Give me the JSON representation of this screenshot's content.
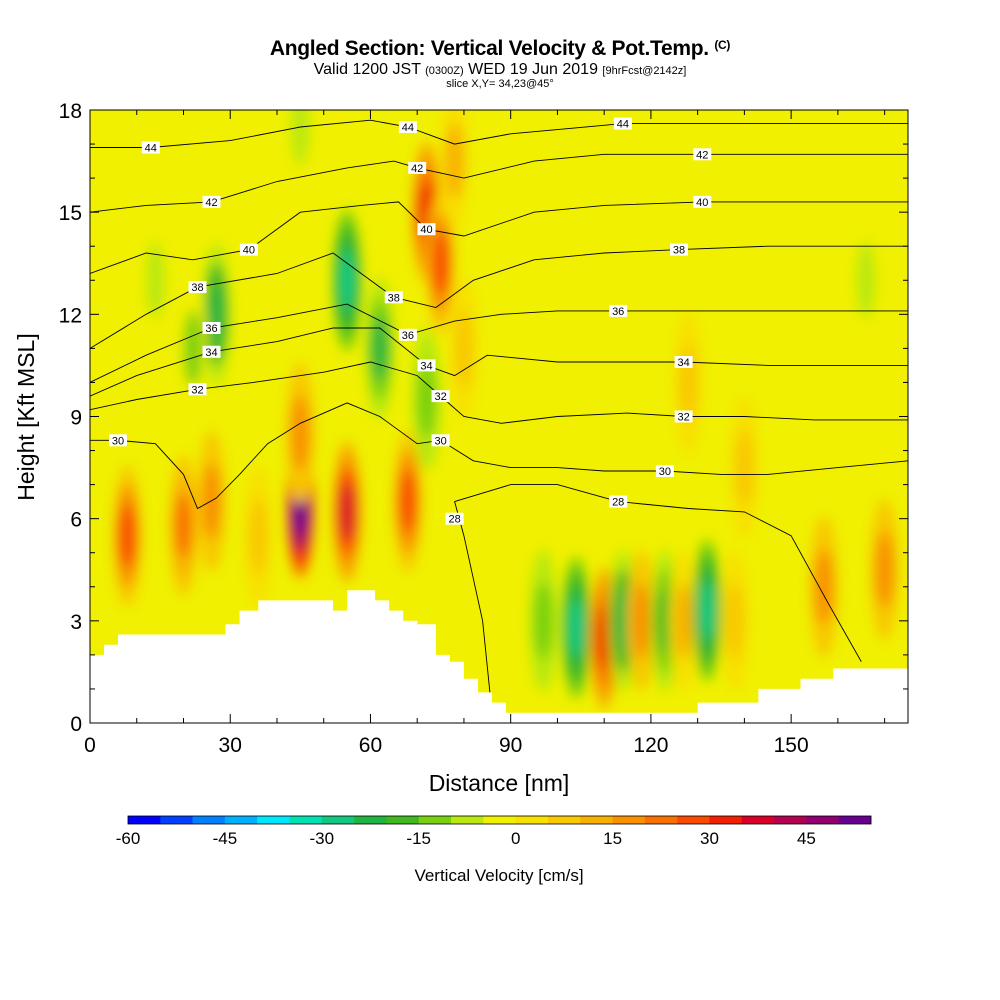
{
  "header": {
    "title_main": "Angled Section: Vertical Velocity & Pot.Temp.",
    "title_copyright": "(C)",
    "valid_prefix": "Valid 1200 JST",
    "valid_utc": "(0300Z)",
    "valid_date": "WED 19 Jun 2019",
    "valid_fcst": "[9hrFcst@2142z]",
    "slice": "slice X,Y= 34,23@45°"
  },
  "chart_data": {
    "type": "heatmap",
    "xlabel": "Distance [nm]",
    "ylabel": "Height [Kft MSL]",
    "xlim": [
      0,
      175
    ],
    "ylim": [
      0,
      18
    ],
    "x_ticks": [
      0,
      30,
      60,
      90,
      120,
      150
    ],
    "y_ticks": [
      0,
      3,
      6,
      9,
      12,
      15,
      18
    ],
    "colorbar": {
      "label": "Vertical Velocity [cm/s]",
      "range": [
        -60,
        55
      ],
      "step": 5,
      "tick_values": [
        -60,
        -45,
        -30,
        -15,
        0,
        15,
        30,
        45
      ],
      "colors": [
        "#0000ff",
        "#0040ff",
        "#0080ff",
        "#00b0ff",
        "#00e6ff",
        "#00e0b0",
        "#10c880",
        "#20b440",
        "#40b820",
        "#78d010",
        "#b8e810",
        "#f0f000",
        "#f8e000",
        "#f8c800",
        "#f8b000",
        "#f89000",
        "#f87000",
        "#f84a00",
        "#f02000",
        "#d80028",
        "#b40050",
        "#900070",
        "#6a0090"
      ]
    },
    "velocity_features": [
      {
        "x": 8,
        "y": 5.5,
        "value": 28
      },
      {
        "x": 20,
        "y": 5.8,
        "value": 20
      },
      {
        "x": 26,
        "y": 6.5,
        "value": 15
      },
      {
        "x": 36,
        "y": 5.5,
        "value": 5
      },
      {
        "x": 45,
        "y": 6.3,
        "value": 55
      },
      {
        "x": 55,
        "y": 6.2,
        "value": 35
      },
      {
        "x": 68,
        "y": 6.5,
        "value": 25
      },
      {
        "x": 45,
        "y": 8.5,
        "value": 15
      },
      {
        "x": 27,
        "y": 12,
        "value": -25
      },
      {
        "x": 22,
        "y": 11,
        "value": -12
      },
      {
        "x": 14,
        "y": 13,
        "value": -8
      },
      {
        "x": 55,
        "y": 13,
        "value": -30
      },
      {
        "x": 62,
        "y": 11,
        "value": -22
      },
      {
        "x": 72,
        "y": 9.5,
        "value": -15
      },
      {
        "x": 45,
        "y": 17.5,
        "value": -8
      },
      {
        "x": 72,
        "y": 15,
        "value": 30
      },
      {
        "x": 75,
        "y": 13.5,
        "value": 25
      },
      {
        "x": 78,
        "y": 16.5,
        "value": 10
      },
      {
        "x": 80,
        "y": 11,
        "value": 8
      },
      {
        "x": 97,
        "y": 3,
        "value": -15
      },
      {
        "x": 104,
        "y": 2.8,
        "value": -30
      },
      {
        "x": 110,
        "y": 2.5,
        "value": 30
      },
      {
        "x": 114,
        "y": 3,
        "value": -25
      },
      {
        "x": 118,
        "y": 3,
        "value": 15
      },
      {
        "x": 123,
        "y": 3,
        "value": -20
      },
      {
        "x": 127,
        "y": 3,
        "value": 12
      },
      {
        "x": 132,
        "y": 3.3,
        "value": -30
      },
      {
        "x": 138,
        "y": 3,
        "value": 5
      },
      {
        "x": 157,
        "y": 4,
        "value": 15
      },
      {
        "x": 170,
        "y": 4.5,
        "value": 15
      },
      {
        "x": 166,
        "y": 13,
        "value": -8
      },
      {
        "x": 140,
        "y": 7.5,
        "value": 8
      },
      {
        "x": 128,
        "y": 10,
        "value": 6
      }
    ],
    "terrain": [
      {
        "x": 0,
        "h": 2.0
      },
      {
        "x": 3,
        "h": 2.0
      },
      {
        "x": 3,
        "h": 2.3
      },
      {
        "x": 6,
        "h": 2.3
      },
      {
        "x": 6,
        "h": 2.6
      },
      {
        "x": 29,
        "h": 2.6
      },
      {
        "x": 29,
        "h": 2.9
      },
      {
        "x": 32,
        "h": 2.9
      },
      {
        "x": 32,
        "h": 3.3
      },
      {
        "x": 36,
        "h": 3.3
      },
      {
        "x": 36,
        "h": 3.6
      },
      {
        "x": 52,
        "h": 3.6
      },
      {
        "x": 52,
        "h": 3.3
      },
      {
        "x": 55,
        "h": 3.3
      },
      {
        "x": 55,
        "h": 3.9
      },
      {
        "x": 61,
        "h": 3.9
      },
      {
        "x": 61,
        "h": 3.6
      },
      {
        "x": 64,
        "h": 3.6
      },
      {
        "x": 64,
        "h": 3.3
      },
      {
        "x": 67,
        "h": 3.3
      },
      {
        "x": 67,
        "h": 3.0
      },
      {
        "x": 70,
        "h": 3.0
      },
      {
        "x": 70,
        "h": 2.9
      },
      {
        "x": 74,
        "h": 2.9
      },
      {
        "x": 74,
        "h": 2.0
      },
      {
        "x": 77,
        "h": 2.0
      },
      {
        "x": 77,
        "h": 1.8
      },
      {
        "x": 80,
        "h": 1.8
      },
      {
        "x": 80,
        "h": 1.3
      },
      {
        "x": 83,
        "h": 1.3
      },
      {
        "x": 83,
        "h": 0.9
      },
      {
        "x": 86,
        "h": 0.9
      },
      {
        "x": 86,
        "h": 0.6
      },
      {
        "x": 89,
        "h": 0.6
      },
      {
        "x": 89,
        "h": 0.3
      },
      {
        "x": 130,
        "h": 0.3
      },
      {
        "x": 130,
        "h": 0.6
      },
      {
        "x": 143,
        "h": 0.6
      },
      {
        "x": 143,
        "h": 1.0
      },
      {
        "x": 152,
        "h": 1.0
      },
      {
        "x": 152,
        "h": 1.3
      },
      {
        "x": 159,
        "h": 1.3
      },
      {
        "x": 159,
        "h": 1.6
      },
      {
        "x": 175,
        "h": 1.6
      }
    ],
    "isentropes": [
      {
        "value": 28,
        "label": "28",
        "labels_at": [
          [
            78,
            6.0
          ],
          [
            113,
            6.5
          ]
        ],
        "points": [
          [
            86,
            0.3
          ],
          [
            84,
            3
          ],
          [
            80,
            5.5
          ],
          [
            78,
            6.5
          ],
          [
            90,
            7.0
          ],
          [
            100,
            7.0
          ],
          [
            113,
            6.5
          ],
          [
            128,
            6.3
          ],
          [
            140,
            6.2
          ],
          [
            150,
            5.5
          ],
          [
            158,
            3.5
          ],
          [
            165,
            1.8
          ]
        ]
      },
      {
        "value": 30,
        "label": "30",
        "labels_at": [
          [
            6,
            8.3
          ],
          [
            75,
            8.3
          ],
          [
            123,
            7.4
          ]
        ],
        "points": [
          [
            0,
            8.3
          ],
          [
            6,
            8.3
          ],
          [
            14,
            8.2
          ],
          [
            20,
            7.3
          ],
          [
            23,
            6.3
          ],
          [
            27,
            6.6
          ],
          [
            32,
            7.3
          ],
          [
            38,
            8.2
          ],
          [
            45,
            8.8
          ],
          [
            55,
            9.4
          ],
          [
            62,
            9.0
          ],
          [
            70,
            8.2
          ],
          [
            75,
            8.3
          ],
          [
            82,
            7.7
          ],
          [
            90,
            7.5
          ],
          [
            100,
            7.5
          ],
          [
            110,
            7.4
          ],
          [
            123,
            7.4
          ],
          [
            135,
            7.3
          ],
          [
            145,
            7.3
          ],
          [
            160,
            7.5
          ],
          [
            175,
            7.7
          ]
        ]
      },
      {
        "value": 32,
        "label": "32",
        "labels_at": [
          [
            23,
            9.8
          ],
          [
            75,
            9.6
          ],
          [
            127,
            9.0
          ]
        ],
        "points": [
          [
            0,
            9.2
          ],
          [
            10,
            9.5
          ],
          [
            23,
            9.8
          ],
          [
            35,
            10.0
          ],
          [
            50,
            10.3
          ],
          [
            60,
            10.6
          ],
          [
            70,
            10.2
          ],
          [
            75,
            9.6
          ],
          [
            80,
            9.0
          ],
          [
            88,
            8.8
          ],
          [
            100,
            9.0
          ],
          [
            115,
            9.1
          ],
          [
            127,
            9.0
          ],
          [
            140,
            9.0
          ],
          [
            155,
            8.9
          ],
          [
            175,
            8.9
          ]
        ]
      },
      {
        "value": 34,
        "label": "34",
        "labels_at": [
          [
            26,
            10.9
          ],
          [
            72,
            10.5
          ],
          [
            127,
            10.6
          ]
        ],
        "points": [
          [
            0,
            9.6
          ],
          [
            10,
            10.2
          ],
          [
            26,
            10.9
          ],
          [
            40,
            11.2
          ],
          [
            52,
            11.6
          ],
          [
            62,
            11.6
          ],
          [
            72,
            10.5
          ],
          [
            78,
            10.2
          ],
          [
            85,
            10.8
          ],
          [
            100,
            10.6
          ],
          [
            115,
            10.6
          ],
          [
            127,
            10.6
          ],
          [
            145,
            10.5
          ],
          [
            160,
            10.5
          ],
          [
            175,
            10.5
          ]
        ]
      },
      {
        "value": 36,
        "label": "36",
        "labels_at": [
          [
            26,
            11.6
          ],
          [
            68,
            11.4
          ],
          [
            113,
            12.1
          ]
        ],
        "points": [
          [
            0,
            10.0
          ],
          [
            12,
            10.8
          ],
          [
            26,
            11.6
          ],
          [
            40,
            11.9
          ],
          [
            55,
            12.3
          ],
          [
            68,
            11.4
          ],
          [
            78,
            11.8
          ],
          [
            88,
            12.0
          ],
          [
            100,
            12.1
          ],
          [
            113,
            12.1
          ],
          [
            130,
            12.1
          ],
          [
            150,
            12.1
          ],
          [
            175,
            12.1
          ]
        ]
      },
      {
        "value": 38,
        "label": "38",
        "labels_at": [
          [
            23,
            12.8
          ],
          [
            65,
            12.5
          ],
          [
            126,
            13.9
          ]
        ],
        "points": [
          [
            0,
            11.0
          ],
          [
            12,
            12.0
          ],
          [
            23,
            12.8
          ],
          [
            40,
            13.2
          ],
          [
            52,
            13.8
          ],
          [
            65,
            12.5
          ],
          [
            74,
            12.2
          ],
          [
            82,
            13.0
          ],
          [
            95,
            13.6
          ],
          [
            110,
            13.8
          ],
          [
            126,
            13.9
          ],
          [
            145,
            14.0
          ],
          [
            175,
            14.0
          ]
        ]
      },
      {
        "value": 40,
        "label": "40",
        "labels_at": [
          [
            34,
            13.9
          ],
          [
            72,
            14.5
          ],
          [
            131,
            15.3
          ]
        ],
        "points": [
          [
            0,
            13.2
          ],
          [
            12,
            13.8
          ],
          [
            22,
            13.6
          ],
          [
            34,
            13.9
          ],
          [
            45,
            15.0
          ],
          [
            58,
            15.2
          ],
          [
            66,
            15.3
          ],
          [
            72,
            14.5
          ],
          [
            80,
            14.3
          ],
          [
            95,
            15.0
          ],
          [
            110,
            15.2
          ],
          [
            131,
            15.3
          ],
          [
            150,
            15.3
          ],
          [
            175,
            15.3
          ]
        ]
      },
      {
        "value": 42,
        "label": "42",
        "labels_at": [
          [
            26,
            15.3
          ],
          [
            70,
            16.3
          ],
          [
            131,
            16.7
          ]
        ],
        "points": [
          [
            0,
            15.0
          ],
          [
            12,
            15.2
          ],
          [
            26,
            15.3
          ],
          [
            40,
            15.9
          ],
          [
            55,
            16.3
          ],
          [
            65,
            16.5
          ],
          [
            70,
            16.3
          ],
          [
            80,
            16.0
          ],
          [
            95,
            16.5
          ],
          [
            110,
            16.7
          ],
          [
            131,
            16.7
          ],
          [
            150,
            16.7
          ],
          [
            175,
            16.7
          ]
        ]
      },
      {
        "value": 44,
        "label": "44",
        "labels_at": [
          [
            13,
            16.9
          ],
          [
            68,
            17.5
          ],
          [
            114,
            17.6
          ]
        ],
        "points": [
          [
            0,
            16.9
          ],
          [
            13,
            16.9
          ],
          [
            30,
            17.1
          ],
          [
            45,
            17.5
          ],
          [
            60,
            17.7
          ],
          [
            68,
            17.5
          ],
          [
            78,
            17.0
          ],
          [
            90,
            17.3
          ],
          [
            114,
            17.6
          ],
          [
            140,
            17.6
          ],
          [
            175,
            17.6
          ]
        ]
      }
    ]
  }
}
